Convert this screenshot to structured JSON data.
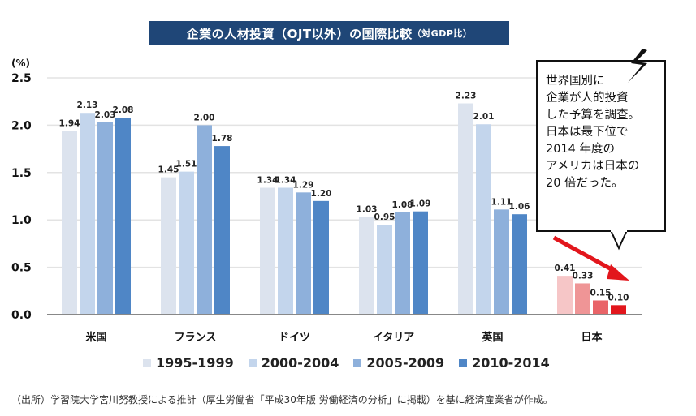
{
  "chart_data": {
    "type": "bar",
    "title": "企業の人材投資（OJT以外）の国際比較",
    "title_suffix": "（対GDP比）",
    "ylabel": "(%)",
    "xlabel": "",
    "ylim": [
      0,
      2.5
    ],
    "yticks": [
      "0.0",
      "0.5",
      "1.0",
      "1.5",
      "2.0",
      "2.5"
    ],
    "ytick_values": [
      0,
      0.5,
      1.0,
      1.5,
      2.0,
      2.5
    ],
    "grid": true,
    "legend_position": "bottom",
    "categories": [
      "米国",
      "フランス",
      "ドイツ",
      "イタリア",
      "英国",
      "日本"
    ],
    "series": [
      {
        "name": "1995-1999",
        "color": "#dce3ee",
        "values": [
          1.94,
          1.45,
          1.34,
          1.03,
          2.23,
          0.41
        ],
        "labels": [
          "1.94",
          "1.45",
          "1.34",
          "1.03",
          "2.23",
          "0.41"
        ]
      },
      {
        "name": "2000-2004",
        "color": "#c3d5ec",
        "values": [
          2.13,
          1.51,
          1.34,
          0.95,
          2.01,
          0.33
        ],
        "labels": [
          "2.13",
          "1.51",
          "1.34",
          "0.95",
          "2.01",
          "0.33"
        ]
      },
      {
        "name": "2005-2009",
        "color": "#8eb0db",
        "values": [
          2.03,
          2.0,
          1.29,
          1.08,
          1.11,
          0.15
        ],
        "labels": [
          "2.03",
          "2.00",
          "1.29",
          "1.08",
          "1.11",
          "0.15"
        ]
      },
      {
        "name": "2010-2014",
        "color": "#4f86c6",
        "values": [
          2.08,
          1.78,
          1.2,
          1.09,
          1.06,
          0.1
        ],
        "labels": [
          "2.08",
          "1.78",
          "1.20",
          "1.09",
          "1.06",
          "0.10"
        ]
      }
    ],
    "highlight_category": "日本",
    "highlight_colors": [
      "#f6c6c7",
      "#ef9596",
      "#e96468",
      "#e2161c"
    ],
    "highlight_label_color": "#e2161c",
    "annotation": {
      "text": "世界国別に\n企業が人的投資\nした予算を調査。\n日本は最下位で\n2014 年度の\nアメリカは日本の\n20 倍だった。",
      "arrow_color": "#e2161c"
    }
  },
  "source_note": "（出所）学習院大学宮川努教授による推計（厚生労働省「平成30年版 労働経済の分析」に掲載）を基に経済産業省が作成。"
}
